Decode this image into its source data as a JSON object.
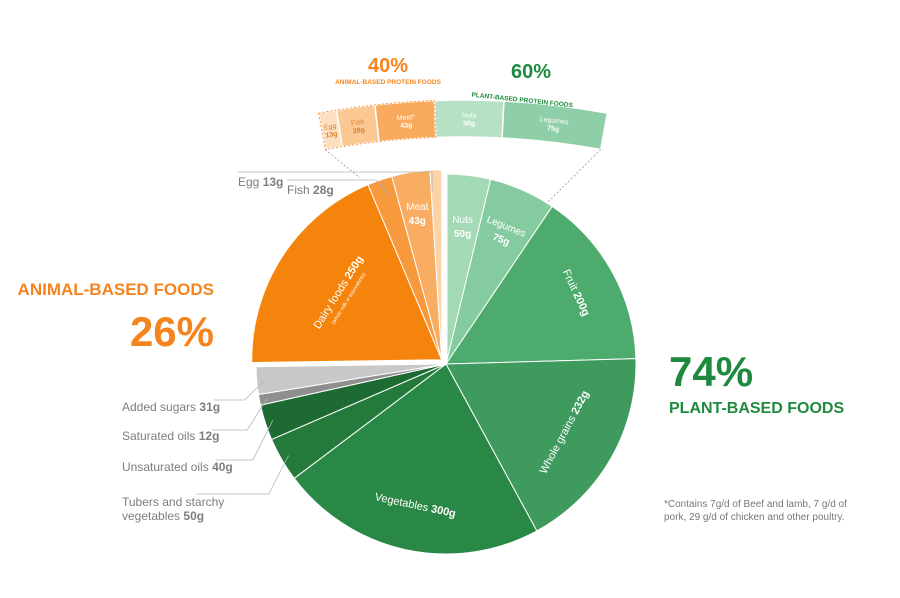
{
  "animal_group": {
    "title": "ANIMAL-BASED FOODS",
    "percent": "26%",
    "color": "#f5841f"
  },
  "plant_group": {
    "percent": "74%",
    "title": "PLANT-BASED FOODS",
    "color": "#1f8a3f"
  },
  "protein_strip": {
    "animal_percent": "40%",
    "animal_label": "ANIMAL-BASED PROTEIN FOODS",
    "plant_percent": "60%",
    "plant_label": "PLANT-BASED PROTEIN FOODS"
  },
  "external_labels": [
    {
      "name": "Egg",
      "amount": "13g"
    },
    {
      "name": "Fish",
      "amount": "28g"
    },
    {
      "name": "Added sugars",
      "amount": "31g"
    },
    {
      "name": "Saturated oils",
      "amount": "12g"
    },
    {
      "name": "Unsaturated oils",
      "amount": "40g"
    },
    {
      "name": "Tubers and starchy",
      "amount": ""
    },
    {
      "name": "vegetables",
      "amount": "50g"
    }
  ],
  "footnote": "*Contains 7g/d of Beef and lamb, 7 g/d of pork, 29 g/d of chicken and other poultry.",
  "chart_data": {
    "type": "pie",
    "unit": "g",
    "slices": [
      {
        "name": "Nuts",
        "value": 50,
        "label": "50g",
        "color": "#a4d9b6",
        "group": "plant"
      },
      {
        "name": "Legumes",
        "value": 75,
        "label": "75g",
        "color": "#86cba0",
        "group": "plant"
      },
      {
        "name": "Fruit",
        "value": 200,
        "label": "200g",
        "color": "#4dab6d",
        "group": "plant"
      },
      {
        "name": "Whole grains",
        "value": 232,
        "label": "232g",
        "color": "#3f9a5e",
        "group": "plant"
      },
      {
        "name": "Vegetables",
        "value": 300,
        "label": "300g",
        "color": "#2a8846",
        "group": "plant"
      },
      {
        "name": "Tubers and starchy vegetables",
        "value": 50,
        "label": "50g",
        "color": "#237a3b",
        "group": "plant"
      },
      {
        "name": "Unsaturated oils",
        "value": 40,
        "label": "40g",
        "color": "#1d6a33",
        "group": "plant"
      },
      {
        "name": "Saturated oils",
        "value": 12,
        "label": "12g",
        "color": "#8f8f8f",
        "group": "other"
      },
      {
        "name": "Added sugars",
        "value": 31,
        "label": "31g",
        "color": "#c8c8c8",
        "group": "other"
      },
      {
        "name": "Dairy foods",
        "value": 250,
        "label": "250g",
        "sublabel": "(whole milk or equivalents)",
        "color": "#f5840c",
        "group": "animal"
      },
      {
        "name": "Fish",
        "value": 28,
        "label": "28g",
        "color": "#f79a3e",
        "group": "animal"
      },
      {
        "name": "Meat",
        "value": 43,
        "label": "43g",
        "color": "#f9ad62",
        "group": "animal"
      },
      {
        "name": "Egg",
        "value": 13,
        "label": "13g",
        "color": "#fcd2a6",
        "group": "animal"
      }
    ],
    "protein_strip": [
      {
        "name": "Egg",
        "value": 13,
        "label": "13g",
        "color": "#fde0c2"
      },
      {
        "name": "Fish",
        "value": 28,
        "label": "28g",
        "color": "#fbc894"
      },
      {
        "name": "Meat*",
        "value": 43,
        "label": "43g",
        "color": "#f9aa5c"
      },
      {
        "name": "Nuts",
        "value": 50,
        "label": "50g",
        "color": "#b6e1c4"
      },
      {
        "name": "Legumes",
        "value": 75,
        "label": "75g",
        "color": "#8fcfa7"
      }
    ]
  }
}
